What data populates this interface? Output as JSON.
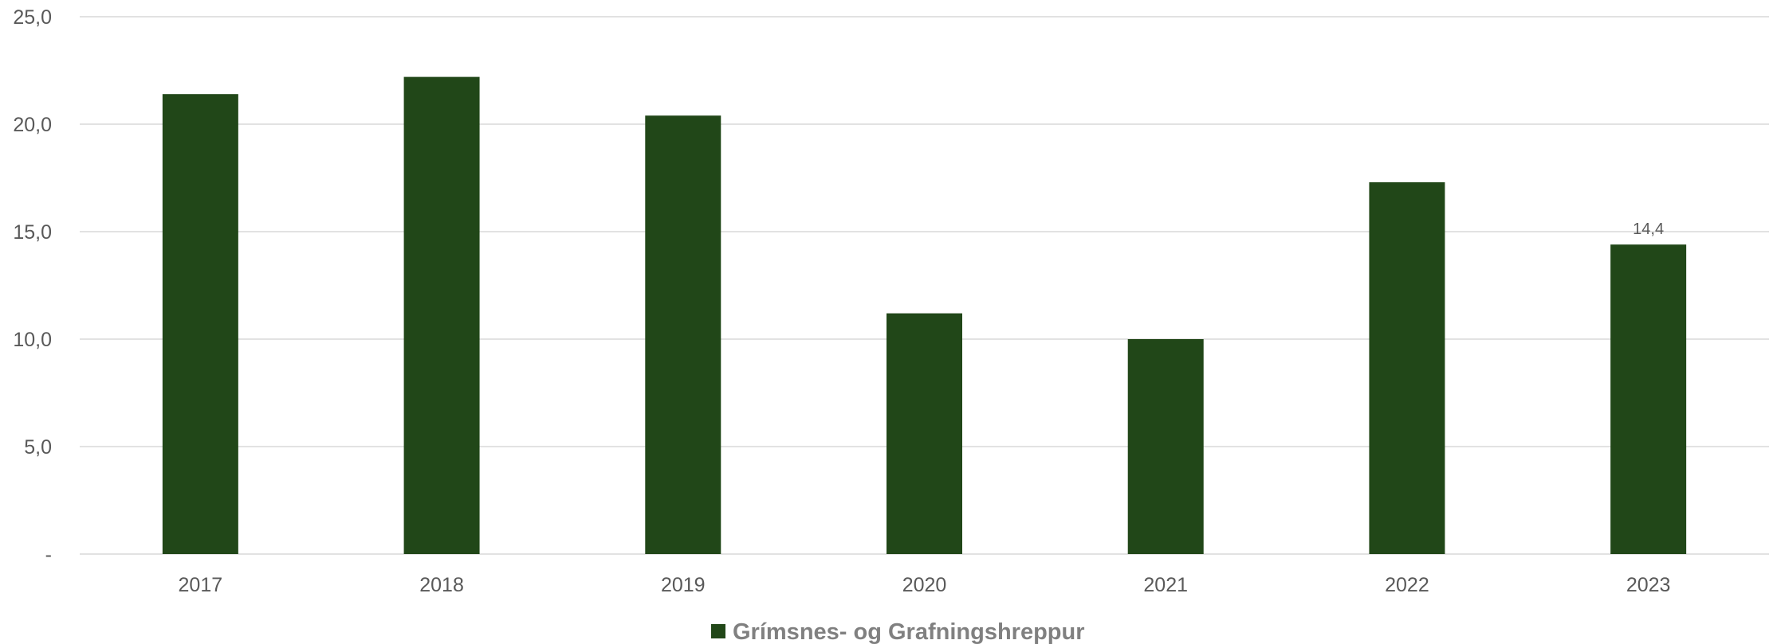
{
  "chart_data": {
    "type": "bar",
    "categories": [
      "2017",
      "2018",
      "2019",
      "2020",
      "2021",
      "2022",
      "2023"
    ],
    "series": [
      {
        "name": "Grímsnes- og Grafningshreppur",
        "values": [
          21.4,
          22.2,
          20.4,
          11.2,
          10.0,
          17.3,
          14.4
        ]
      }
    ],
    "data_labels": [
      {
        "category": "2023",
        "text": "14,4"
      }
    ],
    "yticks": [
      "-",
      "5,0",
      "10,0",
      "15,0",
      "20,0",
      "25,0"
    ],
    "ylim": [
      0,
      25
    ],
    "grid": true,
    "legend_position": "bottom",
    "bar_color": "#214718",
    "grid_color": "#d9d9d9",
    "text_color": "#595959",
    "legend_text_color": "#808080"
  }
}
